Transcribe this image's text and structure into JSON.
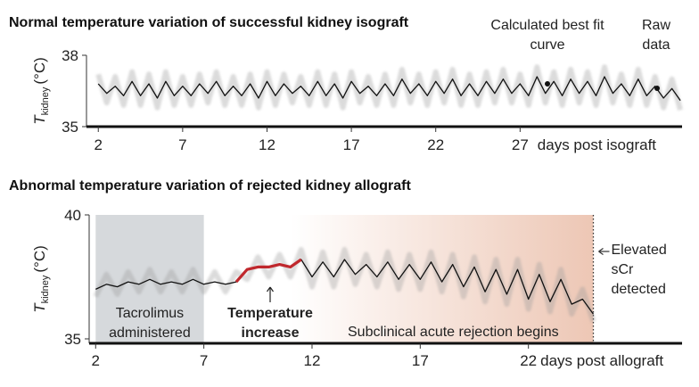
{
  "chart_data": [
    {
      "type": "line",
      "title": "Normal temperature variation of successful kidney isograft",
      "xlabel": "days post isograft",
      "ylabel": {
        "symbol": "T",
        "subscript": "kidney",
        "unit": "(°C)"
      },
      "xlim": [
        1.3,
        36.6
      ],
      "xticks": [
        2,
        7,
        12,
        17,
        22,
        27
      ],
      "ylim": [
        35,
        38
      ],
      "yticks": [
        35,
        38
      ],
      "x": [
        2,
        2.5,
        3,
        3.5,
        4,
        4.5,
        5,
        5.5,
        6,
        6.5,
        7,
        7.5,
        8,
        8.5,
        9,
        9.5,
        10,
        10.5,
        11,
        11.5,
        12,
        12.5,
        13,
        13.5,
        14,
        14.5,
        15,
        15.5,
        16,
        16.5,
        17,
        17.5,
        18,
        18.5,
        19,
        19.5,
        20,
        20.5,
        21,
        21.5,
        22,
        22.5,
        23,
        23.5,
        24,
        24.5,
        25,
        25.5,
        26,
        26.5,
        27,
        27.5,
        28,
        28.5,
        29,
        29.5,
        30,
        30.5,
        31,
        31.5,
        32,
        32.5,
        33,
        33.5,
        34,
        34.5,
        35,
        35.5,
        36,
        36.5
      ],
      "series": [
        {
          "name": "Raw data",
          "color": "#9a9a9a",
          "values": [
            37.2,
            36.0,
            37.1,
            35.9,
            37.3,
            35.9,
            37.2,
            35.8,
            37.3,
            35.9,
            37.1,
            35.9,
            37.2,
            36.0,
            37.3,
            35.9,
            37.1,
            35.9,
            37.2,
            35.8,
            37.3,
            35.9,
            37.2,
            36.0,
            37.1,
            35.9,
            37.3,
            35.9,
            37.2,
            35.8,
            37.3,
            36.0,
            37.1,
            35.9,
            37.2,
            35.9,
            37.4,
            36.0,
            37.2,
            35.9,
            37.3,
            36.0,
            37.4,
            35.9,
            37.2,
            35.9,
            37.3,
            36.0,
            37.4,
            36.0,
            37.2,
            35.9,
            37.5,
            36.0,
            37.3,
            35.9,
            37.4,
            36.0,
            37.3,
            35.9,
            37.5,
            36.0,
            37.2,
            35.9,
            37.4,
            35.9,
            37.1,
            35.8,
            37.0,
            35.7
          ]
        },
        {
          "name": "Calculated best fit curve",
          "color": "#111111",
          "values": [
            36.8,
            36.4,
            36.7,
            36.3,
            36.9,
            36.3,
            36.8,
            36.2,
            36.9,
            36.3,
            36.7,
            36.3,
            36.8,
            36.4,
            36.9,
            36.3,
            36.7,
            36.3,
            36.8,
            36.2,
            36.9,
            36.3,
            36.8,
            36.4,
            36.7,
            36.3,
            36.9,
            36.3,
            36.8,
            36.2,
            36.9,
            36.4,
            36.7,
            36.3,
            36.8,
            36.3,
            37.0,
            36.4,
            36.8,
            36.3,
            36.9,
            36.4,
            37.0,
            36.3,
            36.8,
            36.3,
            36.9,
            36.4,
            37.0,
            36.4,
            36.8,
            36.3,
            37.1,
            36.4,
            36.9,
            36.3,
            37.0,
            36.4,
            36.9,
            36.3,
            37.1,
            36.4,
            36.8,
            36.3,
            37.0,
            36.3,
            36.7,
            36.2,
            36.6,
            36.1
          ]
        }
      ],
      "regions": [],
      "events": [],
      "annotations": []
    },
    {
      "type": "line",
      "title": "Abnormal temperature variation of rejected kidney allograft",
      "xlabel": "days post allograft",
      "ylabel": {
        "symbol": "T",
        "subscript": "kidney",
        "unit": "(°C)"
      },
      "xlim": [
        1.7,
        29.1
      ],
      "xticks": [
        2,
        7,
        12,
        17,
        22
      ],
      "ylim": [
        35,
        40
      ],
      "yticks": [
        35,
        40
      ],
      "x": [
        2,
        2.5,
        3,
        3.5,
        4,
        4.5,
        5,
        5.5,
        6,
        6.5,
        7,
        7.5,
        8,
        8.5,
        9,
        9.5,
        10,
        10.5,
        11,
        11.5,
        12,
        12.5,
        13,
        13.5,
        14,
        14.5,
        15,
        15.5,
        16,
        16.5,
        17,
        17.5,
        18,
        18.5,
        19,
        19.5,
        20,
        20.5,
        21,
        21.5,
        22,
        22.5,
        23,
        23.5,
        24,
        24.5,
        25
      ],
      "series": [
        {
          "color": "#9a9a9a",
          "values": [
            36.7,
            37.6,
            36.8,
            37.7,
            36.9,
            37.8,
            36.9,
            37.7,
            36.9,
            37.8,
            36.9,
            37.7,
            36.9,
            37.7,
            37.4,
            38.3,
            37.5,
            38.4,
            37.5,
            38.6,
            37.1,
            38.5,
            37.1,
            38.6,
            37.2,
            38.4,
            37.1,
            38.5,
            37.0,
            38.4,
            37.0,
            38.5,
            36.9,
            38.4,
            36.7,
            38.3,
            36.5,
            38.2,
            36.4,
            38.2,
            36.2,
            38.0,
            36.1,
            37.8,
            36.0,
            37.0,
            35.7
          ]
        },
        {
          "color": "#111111",
          "values": [
            37.0,
            37.2,
            37.1,
            37.3,
            37.2,
            37.4,
            37.2,
            37.3,
            37.2,
            37.4,
            37.2,
            37.3,
            37.2,
            37.3,
            37.8,
            37.9,
            37.9,
            38.0,
            37.9,
            38.2,
            37.5,
            38.1,
            37.5,
            38.2,
            37.6,
            38.0,
            37.5,
            38.1,
            37.4,
            38.0,
            37.4,
            38.1,
            37.3,
            38.0,
            37.1,
            37.9,
            36.9,
            37.8,
            36.8,
            37.8,
            36.6,
            37.6,
            36.5,
            37.4,
            36.4,
            36.6,
            36.0
          ]
        },
        {
          "color": "#c0282d",
          "values": [
            null,
            null,
            null,
            null,
            null,
            null,
            null,
            null,
            null,
            null,
            null,
            null,
            null,
            37.3,
            37.8,
            37.9,
            37.9,
            38.0,
            37.9,
            38.2,
            null,
            null,
            null,
            null,
            null,
            null,
            null,
            null,
            null,
            null,
            null,
            null,
            null,
            null,
            null,
            null,
            null,
            null,
            null,
            null,
            null,
            null,
            null,
            null,
            null,
            null,
            null
          ]
        }
      ],
      "regions": [
        {
          "label": "Tacrolimus administered",
          "x": [
            2,
            7
          ],
          "color": "#cfd2d6"
        },
        {
          "label": "Subclinical acute rejection begins",
          "x": [
            11,
            25
          ],
          "color": "#e7b49c"
        }
      ],
      "events": [
        {
          "label": "Elevated sCr detected",
          "x": 25
        }
      ],
      "annotations": [
        "Temperature increase"
      ]
    }
  ]
}
